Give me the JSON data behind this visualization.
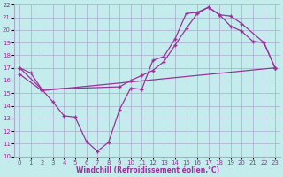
{
  "xlabel": "Windchill (Refroidissement éolien,°C)",
  "xlim": [
    -0.5,
    23.5
  ],
  "ylim": [
    10,
    22
  ],
  "xticks": [
    0,
    1,
    2,
    3,
    4,
    5,
    6,
    7,
    8,
    9,
    10,
    11,
    12,
    13,
    14,
    15,
    16,
    17,
    18,
    19,
    20,
    21,
    22,
    23
  ],
  "yticks": [
    10,
    11,
    12,
    13,
    14,
    15,
    16,
    17,
    18,
    19,
    20,
    21,
    22
  ],
  "bg_color": "#c5ecec",
  "grid_color": "#aaaacc",
  "line_color": "#993399",
  "line1_x": [
    0,
    1,
    2,
    3,
    4,
    5,
    6,
    7,
    8,
    9,
    10,
    11,
    12,
    13,
    14,
    15,
    16,
    17,
    18,
    19,
    20,
    21,
    22,
    23
  ],
  "line1_y": [
    17.0,
    16.6,
    15.3,
    14.3,
    13.2,
    13.1,
    11.2,
    10.4,
    11.1,
    13.7,
    15.4,
    15.3,
    17.6,
    17.9,
    19.3,
    21.3,
    21.4,
    21.8,
    21.2,
    20.3,
    19.9,
    19.1,
    19.0,
    17.0
  ],
  "line2_x": [
    0,
    2,
    23
  ],
  "line2_y": [
    16.5,
    15.2,
    17.0
  ],
  "line3_x": [
    0,
    2,
    9,
    10,
    11,
    12,
    13,
    14,
    15,
    16,
    17,
    18,
    19,
    20,
    22,
    23
  ],
  "line3_y": [
    17.0,
    15.3,
    15.5,
    16.0,
    16.4,
    16.8,
    17.5,
    18.8,
    20.1,
    21.3,
    21.8,
    21.2,
    21.1,
    20.5,
    19.0,
    17.0
  ]
}
